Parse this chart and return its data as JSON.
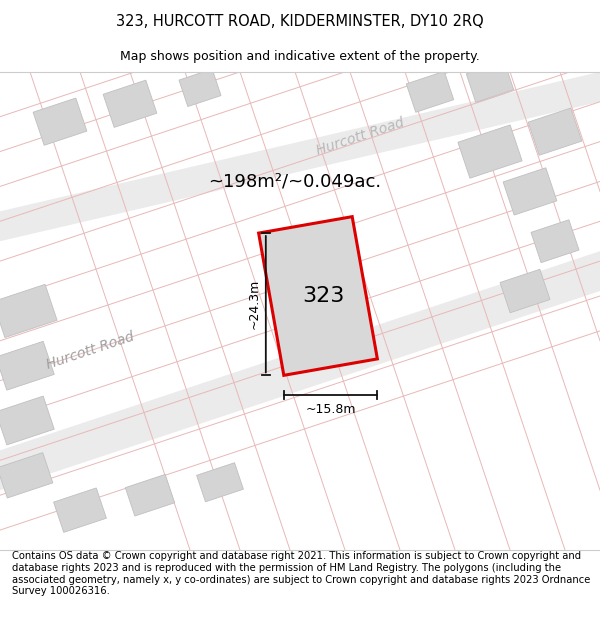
{
  "title_line1": "323, HURCOTT ROAD, KIDDERMINSTER, DY10 2RQ",
  "title_line2": "Map shows position and indicative extent of the property.",
  "footer_text": "Contains OS data © Crown copyright and database right 2021. This information is subject to Crown copyright and database rights 2023 and is reproduced with the permission of HM Land Registry. The polygons (including the associated geometry, namely x, y co-ordinates) are subject to Crown copyright and database rights 2023 Ordnance Survey 100026316.",
  "area_label": "~198m²/~0.049ac.",
  "property_label": "323",
  "dim_width_label": "~15.8m",
  "dim_height_label": "~24.3m",
  "road_label_lower": "Hurcott Road",
  "road_label_upper": "Hurcott Road",
  "map_bg": "#f8f8f8",
  "road_fill": "#e8e8e8",
  "road_line_color": "#e8b8b8",
  "plot_outline_color": "#dd0000",
  "dim_line_color": "#111111",
  "block_color": "#d4d4d4",
  "block_edge": "#c0c0c0",
  "title_fontsize": 10.5,
  "subtitle_fontsize": 9,
  "footer_fontsize": 7.2,
  "area_fontsize": 13,
  "prop_label_fontsize": 16,
  "dim_fontsize": 9,
  "road_fontsize": 10
}
